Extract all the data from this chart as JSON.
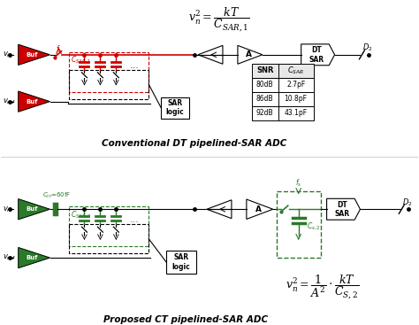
{
  "title_top": "Conventional DT pipelined-SAR ADC",
  "title_bottom": "Proposed CT pipelined-SAR ADC",
  "table_rows": [
    [
      "80dB",
      "2.7pF"
    ],
    [
      "86dB",
      "10.8pF"
    ],
    [
      "92dB",
      "43.1pF"
    ]
  ],
  "red": "#cc0000",
  "green": "#2a7a2a",
  "black": "#000000",
  "white": "#ffffff",
  "light_gray": "#e8e8e8",
  "fig_w": 4.74,
  "fig_h": 3.67,
  "dpi": 100
}
